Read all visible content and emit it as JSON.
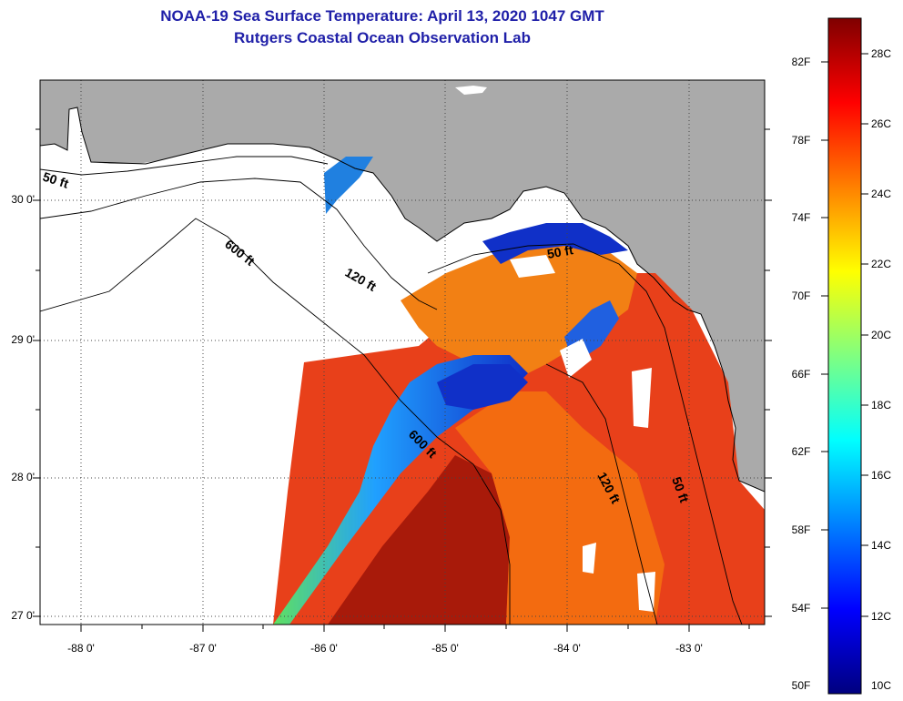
{
  "header": {
    "title": "NOAA-19 Sea Surface Temperature:  April 13, 2020 1047 GMT",
    "subtitle": "Rutgers Coastal Ocean Observation Lab"
  },
  "map": {
    "latitude_ticks": [
      "30 0'",
      "29 0'",
      "28 0'",
      "27 0'"
    ],
    "longitude_ticks": [
      "-88 0'",
      "-87 0'",
      "-86 0'",
      "-85 0'",
      "-84 0'",
      "-83 0'"
    ],
    "contour_labels": [
      "50 ft",
      "600 ft",
      "120 ft",
      "50 ft",
      "600 ft",
      "120 ft",
      "50 ft"
    ],
    "colors": {
      "land": "#aaaaaa",
      "no_data": "#ffffff",
      "warm": "#e63010",
      "hot": "#a01808",
      "cold": "#1030c8"
    }
  },
  "colorbar": {
    "fahrenheit_labels": [
      "82F",
      "78F",
      "74F",
      "70F",
      "66F",
      "62F",
      "58F",
      "54F",
      "50F"
    ],
    "celsius_labels": [
      "28C",
      "26C",
      "24C",
      "22C",
      "20C",
      "18C",
      "16C",
      "14C",
      "12C",
      "10C"
    ],
    "gradient_stops": [
      "#00007f",
      "#0000ff",
      "#0080ff",
      "#00ffff",
      "#80ff80",
      "#ffff00",
      "#ff8000",
      "#ff0000",
      "#7f0000"
    ]
  }
}
